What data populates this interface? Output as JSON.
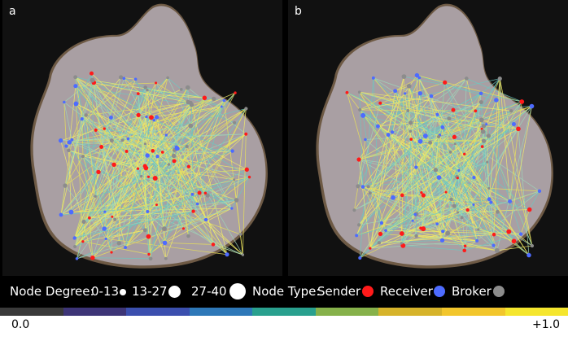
{
  "panels": [
    {
      "label": "a",
      "seed": 7
    },
    {
      "label": "b",
      "seed": 23
    }
  ],
  "legend": {
    "node_degree_title": "Node Degree:",
    "degree_bins": [
      "0-13",
      "13-27",
      "27-40"
    ],
    "node_type_title": "Node Type:",
    "node_types": [
      {
        "label": "Sender",
        "color": "#ff1a1a"
      },
      {
        "label": "Receiver",
        "color": "#4d6bff"
      },
      {
        "label": "Broker",
        "color": "#8c8c8c"
      }
    ]
  },
  "colorbar": {
    "min_label": "0.0",
    "max_label": "+1.0",
    "colors": [
      "#3a3a3a",
      "#3d3577",
      "#3b4fae",
      "#2e78b8",
      "#29a08e",
      "#86b14a",
      "#d6b32a",
      "#f2c62c",
      "#f5e62e"
    ]
  },
  "edge_colors": [
    "#e8e05a",
    "#9fd5b8",
    "#6fc7c0",
    "#f0ea6a"
  ]
}
